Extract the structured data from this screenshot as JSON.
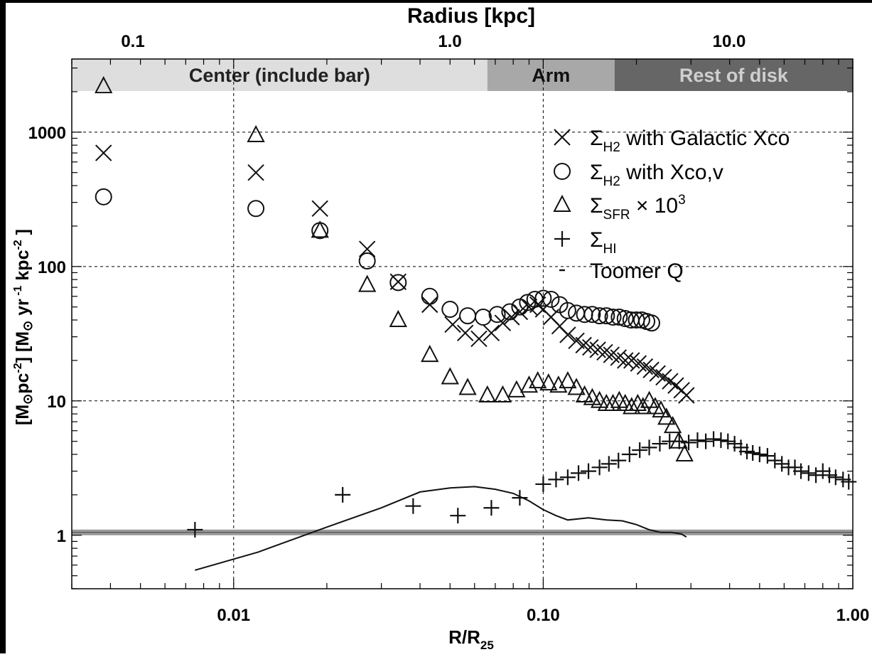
{
  "chart_data": {
    "type": "scatter",
    "title": "",
    "xlabel_main": "R/R",
    "xlabel_sub": "25",
    "top_axis_title": "Radius [kpc]",
    "top_ticks": [
      "0.1",
      "1.0",
      "10.0"
    ],
    "xscale": "log",
    "yscale": "log",
    "xlim": [
      0.003,
      1.0
    ],
    "ylim": [
      0.4,
      3500
    ],
    "grid": true,
    "x_ticks": [
      "0.01",
      "0.10",
      "1.00"
    ],
    "y_ticks": [
      "1",
      "10",
      "100",
      "1000"
    ],
    "regions": [
      {
        "label": "Center (include bar)",
        "x_range": [
          0.003,
          0.066
        ],
        "color": "#dedede"
      },
      {
        "label": "Arm",
        "x_range": [
          0.066,
          0.17
        ],
        "color": "#a8a8a8"
      },
      {
        "label": "Rest of disk",
        "x_range": [
          0.17,
          1.0
        ],
        "color": "#666666"
      }
    ],
    "toomre_threshold": 1.05,
    "legend_position": "top-right",
    "legend": [
      {
        "symbol": "×",
        "name": "Σ",
        "sub": "H2",
        "rest": " with Galactic Xco"
      },
      {
        "symbol": "O",
        "name": "Σ",
        "sub": "H2",
        "rest": " with Xco,v"
      },
      {
        "symbol": "Δ",
        "name": "Σ",
        "sub": "SFR",
        "rest": " × 10",
        "sup": "3"
      },
      {
        "symbol": "+",
        "name": "Σ",
        "sub": "HI",
        "rest": ""
      },
      {
        "symbol": "-",
        "name": "Toomer Q",
        "sub": "",
        "rest": ""
      }
    ],
    "series": [
      {
        "name": "ΣH2 with Galactic Xco",
        "marker": "x",
        "x": [
          0.0038,
          0.0118,
          0.019,
          0.027,
          0.034,
          0.043,
          0.051,
          0.056,
          0.062,
          0.068,
          0.074,
          0.079,
          0.084,
          0.09,
          0.096,
          0.1,
          0.106,
          0.113,
          0.12,
          0.128,
          0.135,
          0.142,
          0.15,
          0.158,
          0.166,
          0.175,
          0.184,
          0.193,
          0.203,
          0.213,
          0.223,
          0.234,
          0.245,
          0.257,
          0.268,
          0.28,
          0.29
        ],
        "y": [
          700,
          500,
          270,
          135,
          77,
          52,
          37,
          32,
          29,
          32,
          38,
          42,
          46,
          50,
          52,
          48,
          42,
          36,
          31,
          28,
          26,
          25,
          24,
          23,
          22,
          21,
          20,
          20,
          19,
          18,
          17,
          16,
          15,
          14,
          13,
          12,
          11
        ]
      },
      {
        "name": "ΣH2 with Xco,v",
        "marker": "o",
        "x": [
          0.0038,
          0.0118,
          0.019,
          0.027,
          0.034,
          0.043,
          0.05,
          0.057,
          0.064,
          0.071,
          0.078,
          0.084,
          0.089,
          0.094,
          0.1,
          0.106,
          0.113,
          0.12,
          0.128,
          0.136,
          0.144,
          0.152,
          0.16,
          0.168,
          0.176,
          0.184,
          0.192,
          0.2,
          0.208,
          0.216,
          0.224
        ],
        "y": [
          330,
          270,
          185,
          110,
          76,
          60,
          48,
          43,
          42,
          44,
          46,
          50,
          54,
          57,
          58,
          57,
          52,
          47,
          45,
          44,
          44,
          43,
          43,
          42,
          42,
          41,
          40,
          40,
          40,
          39,
          38
        ]
      },
      {
        "name": "ΣSFR × 10^3",
        "marker": "triangle",
        "x": [
          0.0038,
          0.0118,
          0.019,
          0.027,
          0.034,
          0.043,
          0.05,
          0.057,
          0.066,
          0.074,
          0.082,
          0.09,
          0.096,
          0.104,
          0.112,
          0.12,
          0.128,
          0.136,
          0.144,
          0.152,
          0.16,
          0.168,
          0.176,
          0.184,
          0.193,
          0.202,
          0.21,
          0.22,
          0.23,
          0.24,
          0.25,
          0.262,
          0.274,
          0.286
        ],
        "y": [
          2200,
          950,
          185,
          73,
          40,
          22,
          15,
          12.5,
          11,
          11,
          12,
          13,
          14,
          13.5,
          13,
          14,
          12.5,
          11,
          10.5,
          10,
          9.5,
          9.5,
          10,
          9.5,
          9,
          9.5,
          9,
          10,
          9,
          8.5,
          7.5,
          6.5,
          5,
          4
        ]
      },
      {
        "name": "ΣHI",
        "marker": "plus",
        "x": [
          0.0075,
          0.0225,
          0.038,
          0.053,
          0.068,
          0.084,
          0.1,
          0.11,
          0.12,
          0.13,
          0.14,
          0.152,
          0.163,
          0.175,
          0.19,
          0.205,
          0.22,
          0.238,
          0.256,
          0.275,
          0.295,
          0.315,
          0.335,
          0.355,
          0.375,
          0.395,
          0.415,
          0.435,
          0.455,
          0.475,
          0.5,
          0.53,
          0.56,
          0.59,
          0.62,
          0.65,
          0.68,
          0.72,
          0.76,
          0.8,
          0.84,
          0.88,
          0.93,
          0.97
        ],
        "y": [
          1.1,
          2.0,
          1.65,
          1.4,
          1.6,
          1.9,
          2.4,
          2.6,
          2.7,
          2.9,
          3.0,
          3.2,
          3.4,
          3.6,
          4.0,
          4.3,
          4.5,
          4.8,
          5.0,
          5.0,
          4.9,
          5.1,
          5.0,
          5.2,
          5.1,
          5.0,
          4.8,
          4.5,
          4.2,
          4.1,
          4.0,
          3.9,
          3.6,
          3.4,
          3.2,
          3.2,
          3.0,
          2.9,
          2.8,
          3.0,
          2.8,
          2.7,
          2.6,
          2.5
        ]
      },
      {
        "name": "Toomer Q",
        "marker": "line",
        "x": [
          0.0075,
          0.012,
          0.02,
          0.03,
          0.04,
          0.05,
          0.06,
          0.07,
          0.08,
          0.09,
          0.1,
          0.11,
          0.12,
          0.14,
          0.16,
          0.18,
          0.2,
          0.22,
          0.24,
          0.26,
          0.28,
          0.29
        ],
        "y": [
          0.55,
          0.75,
          1.15,
          1.6,
          2.1,
          2.25,
          2.3,
          2.2,
          2.05,
          1.8,
          1.55,
          1.4,
          1.3,
          1.35,
          1.3,
          1.28,
          1.2,
          1.1,
          1.05,
          1.05,
          1.02,
          0.97
        ]
      }
    ]
  }
}
